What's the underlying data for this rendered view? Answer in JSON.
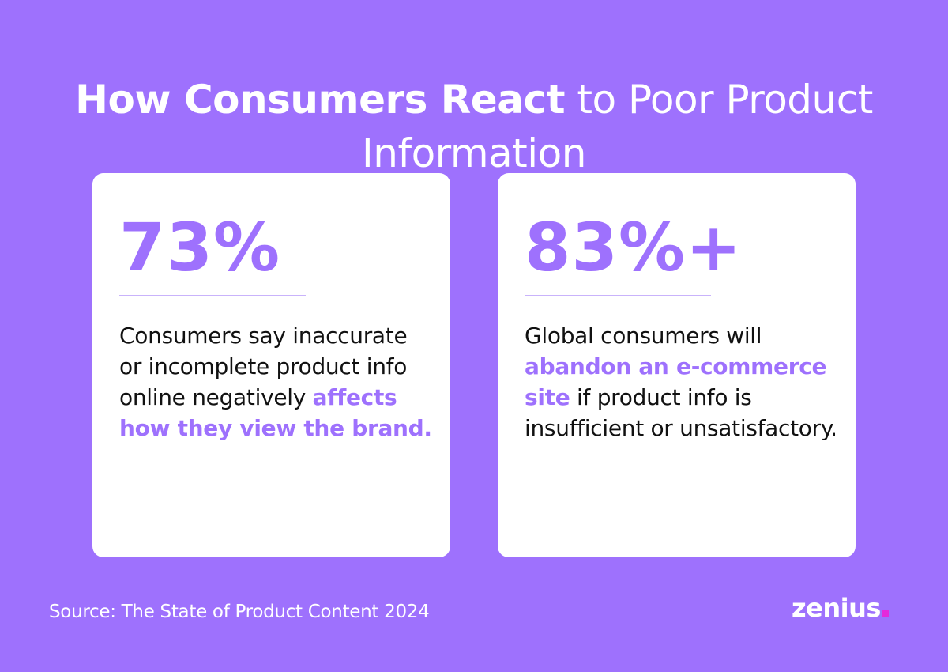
{
  "title": {
    "bold_part": "How Consumers React",
    "light_part": " to Poor Product Information"
  },
  "cards": [
    {
      "stat": "73%",
      "segments": [
        {
          "text": "Consumers say inaccurate or incomplete product info online negatively ",
          "highlight": false
        },
        {
          "text": "affects how they view the brand.",
          "highlight": true
        }
      ]
    },
    {
      "stat": "83%+",
      "segments": [
        {
          "text": "Global consumers will ",
          "highlight": false
        },
        {
          "text": "abandon an e-commerce site",
          "highlight": true
        },
        {
          "text": " if product info is insufficient or unsatisfactory.",
          "highlight": false
        }
      ]
    }
  ],
  "footer": {
    "source": "Source: The State of Product Content 2024",
    "logo": "zenius"
  },
  "colors": {
    "background": "#9e71fd",
    "accent": "#9e71fd",
    "card": "#ffffff",
    "logo_dot": "#e42adb"
  }
}
